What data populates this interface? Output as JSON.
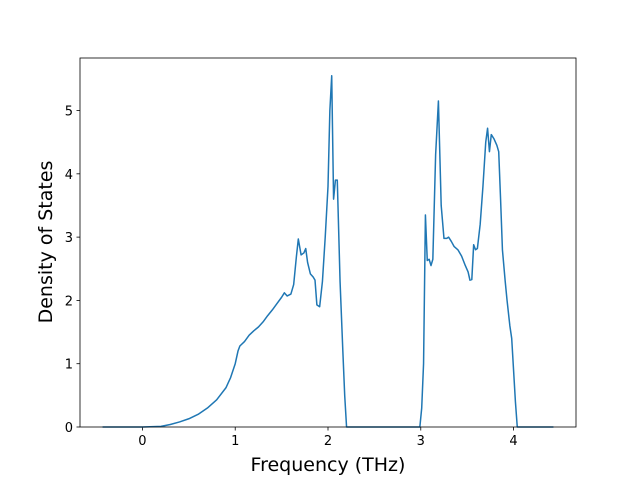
{
  "chart_data": {
    "type": "line",
    "xlabel": "Frequency (THz)",
    "ylabel": "Density of States",
    "color": "#1f77b4",
    "x": [
      -0.43,
      0.0,
      0.2,
      0.3,
      0.4,
      0.5,
      0.6,
      0.7,
      0.8,
      0.9,
      0.95,
      1.0,
      1.03,
      1.05,
      1.1,
      1.15,
      1.2,
      1.25,
      1.3,
      1.35,
      1.4,
      1.45,
      1.5,
      1.53,
      1.56,
      1.6,
      1.63,
      1.66,
      1.68,
      1.71,
      1.74,
      1.76,
      1.78,
      1.81,
      1.84,
      1.86,
      1.88,
      1.91,
      1.94,
      1.97,
      2.0,
      2.02,
      2.04,
      2.06,
      2.08,
      2.1,
      2.13,
      2.16,
      2.18,
      2.2,
      2.5,
      2.99,
      3.01,
      3.03,
      3.05,
      3.07,
      3.09,
      3.11,
      3.13,
      3.16,
      3.19,
      3.22,
      3.25,
      3.28,
      3.3,
      3.33,
      3.36,
      3.4,
      3.44,
      3.48,
      3.51,
      3.53,
      3.55,
      3.57,
      3.59,
      3.61,
      3.64,
      3.67,
      3.7,
      3.72,
      3.74,
      3.76,
      3.79,
      3.82,
      3.84,
      3.86,
      3.88,
      3.91,
      3.93,
      3.96,
      3.98,
      4.0,
      4.02,
      4.04,
      4.43
    ],
    "values": [
      0,
      0,
      0.01,
      0.04,
      0.08,
      0.13,
      0.2,
      0.3,
      0.43,
      0.62,
      0.78,
      1.0,
      1.2,
      1.28,
      1.35,
      1.45,
      1.52,
      1.58,
      1.66,
      1.76,
      1.85,
      1.95,
      2.05,
      2.12,
      2.07,
      2.1,
      2.25,
      2.7,
      2.97,
      2.72,
      2.75,
      2.82,
      2.6,
      2.42,
      2.37,
      2.32,
      1.93,
      1.9,
      2.3,
      3.0,
      3.8,
      5.0,
      5.55,
      3.6,
      3.9,
      3.9,
      2.3,
      1.2,
      0.5,
      0,
      0,
      0,
      0.3,
      1.0,
      3.35,
      2.63,
      2.65,
      2.55,
      2.65,
      4.3,
      5.15,
      3.5,
      2.98,
      2.98,
      3.0,
      2.93,
      2.85,
      2.8,
      2.7,
      2.55,
      2.45,
      2.32,
      2.33,
      2.88,
      2.8,
      2.82,
      3.2,
      3.8,
      4.5,
      4.72,
      4.35,
      4.62,
      4.55,
      4.45,
      4.35,
      3.6,
      2.8,
      2.3,
      2.0,
      1.6,
      1.4,
      0.9,
      0.4,
      0.0,
      0
    ],
    "xlim": [
      -0.673,
      4.673
    ],
    "ylim": [
      0,
      5.83
    ],
    "xticks": [
      0,
      1,
      2,
      3,
      4
    ],
    "yticks": [
      0,
      1,
      2,
      3,
      4,
      5
    ]
  }
}
